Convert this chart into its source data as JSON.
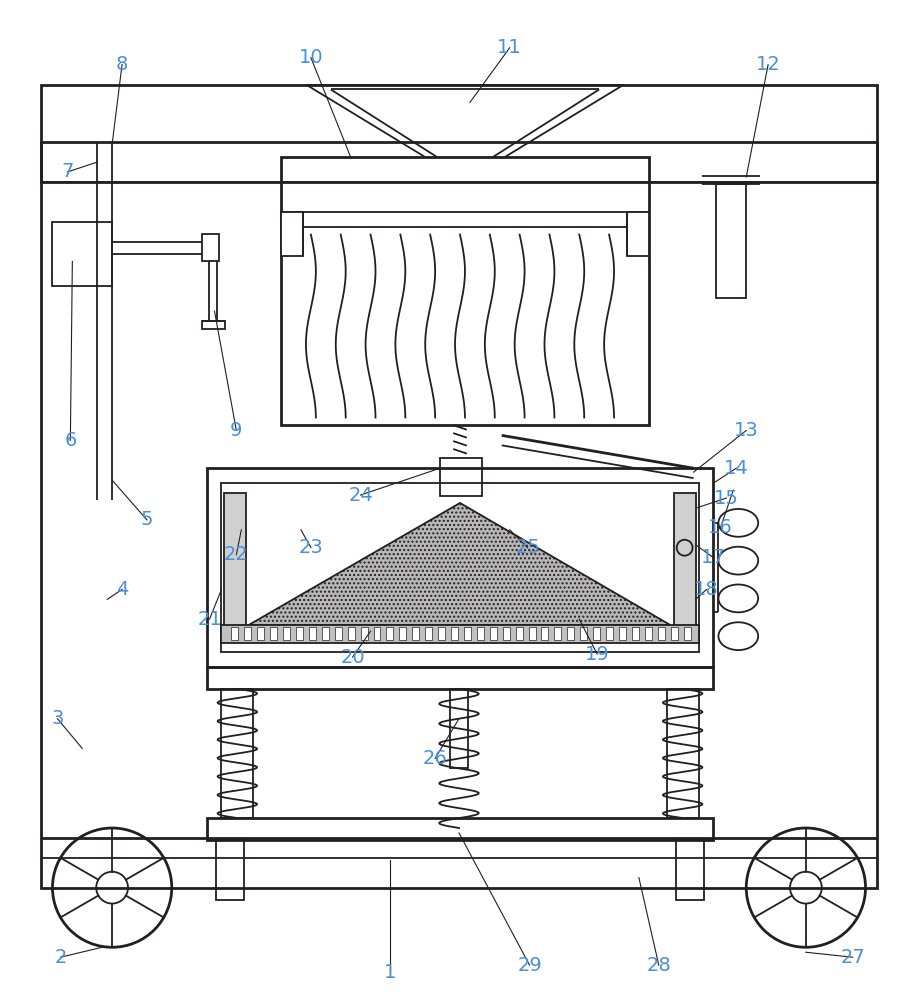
{
  "bg_color": "#ffffff",
  "line_color": "#231f20",
  "label_color": "#4a90d9",
  "figsize": [
    9.18,
    10.0
  ],
  "dpi": 100
}
